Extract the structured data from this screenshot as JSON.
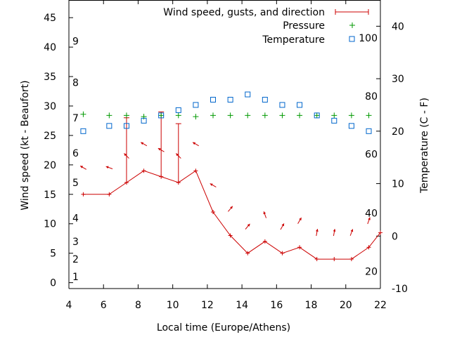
{
  "chart_data": {
    "type": "line",
    "xlabel": "Local time (Europe/Athens)",
    "ylabel_left": "Wind speed (kt - Beaufort)",
    "ylabel_right": "Temperature (C - F)",
    "xlim": [
      4,
      22
    ],
    "ylim_left": [
      -1,
      48
    ],
    "ylim_right": [
      -10,
      45
    ],
    "x_ticks": [
      "4",
      "6",
      "8",
      "10",
      "12",
      "14",
      "16",
      "18",
      "20",
      "22"
    ],
    "y_ticks_left": [
      "0",
      "5",
      "10",
      "15",
      "20",
      "25",
      "30",
      "35",
      "40",
      "45"
    ],
    "y_ticks_right": [
      "-10",
      "0",
      "10",
      "20",
      "30",
      "40"
    ],
    "beaufort_labels": [
      {
        "label": "1",
        "kt": 1
      },
      {
        "label": "2",
        "kt": 4
      },
      {
        "label": "3",
        "kt": 7
      },
      {
        "label": "4",
        "kt": 11
      },
      {
        "label": "5",
        "kt": 17
      },
      {
        "label": "6",
        "kt": 22
      },
      {
        "label": "7",
        "kt": 28
      },
      {
        "label": "8",
        "kt": 34
      },
      {
        "label": "9",
        "kt": 41
      }
    ],
    "fahrenheit_labels": [
      {
        "label": "20",
        "celsius": -6.7
      },
      {
        "label": "40",
        "celsius": 4.4
      },
      {
        "label": "60",
        "celsius": 15.6
      },
      {
        "label": "80",
        "celsius": 26.7
      },
      {
        "label": "100",
        "celsius": 37.8
      }
    ],
    "legend_position": "top-right",
    "series": [
      {
        "name": "Wind speed, gusts, and direction",
        "color": "#cc0000",
        "x": [
          4.83,
          6.33,
          7.33,
          8.33,
          9.33,
          10.33,
          11.33,
          12.33,
          13.33,
          14.33,
          15.33,
          16.33,
          17.33,
          18.33,
          19.33,
          20.33,
          21.33,
          22.0
        ],
        "speed": [
          15,
          15,
          17,
          19,
          18,
          17,
          19,
          12,
          8,
          5,
          7,
          5,
          6,
          4,
          4,
          4,
          6,
          8.5
        ],
        "gust": [
          null,
          null,
          28,
          null,
          29,
          27,
          null,
          null,
          null,
          null,
          null,
          null,
          null,
          null,
          null,
          null,
          null,
          null
        ],
        "direction_deg": [
          300,
          290,
          315,
          300,
          300,
          315,
          300,
          300,
          40,
          40,
          340,
          30,
          30,
          10,
          10,
          20,
          20,
          null
        ]
      },
      {
        "name": "Pressure",
        "color": "#009900",
        "x": [
          4.83,
          6.33,
          7.33,
          8.33,
          9.33,
          10.33,
          11.33,
          12.33,
          13.33,
          14.33,
          15.33,
          16.33,
          17.33,
          18.33,
          19.33,
          20.33,
          21.33
        ],
        "y_kt_axis": [
          28.6,
          28.4,
          28.4,
          28.2,
          28.4,
          28.4,
          28.2,
          28.4,
          28.4,
          28.4,
          28.4,
          28.4,
          28.4,
          28.4,
          28.4,
          28.4,
          28.4
        ]
      },
      {
        "name": "Temperature",
        "color": "#0066cc",
        "x": [
          4.83,
          6.33,
          7.33,
          8.33,
          9.33,
          10.33,
          11.33,
          12.33,
          13.33,
          14.33,
          15.33,
          16.33,
          17.33,
          18.33,
          19.33,
          20.33,
          21.33
        ],
        "y_celsius": [
          20,
          21,
          21,
          22,
          23,
          24,
          25,
          26,
          26,
          27,
          26,
          25,
          25,
          23,
          22,
          21,
          20
        ]
      }
    ]
  }
}
